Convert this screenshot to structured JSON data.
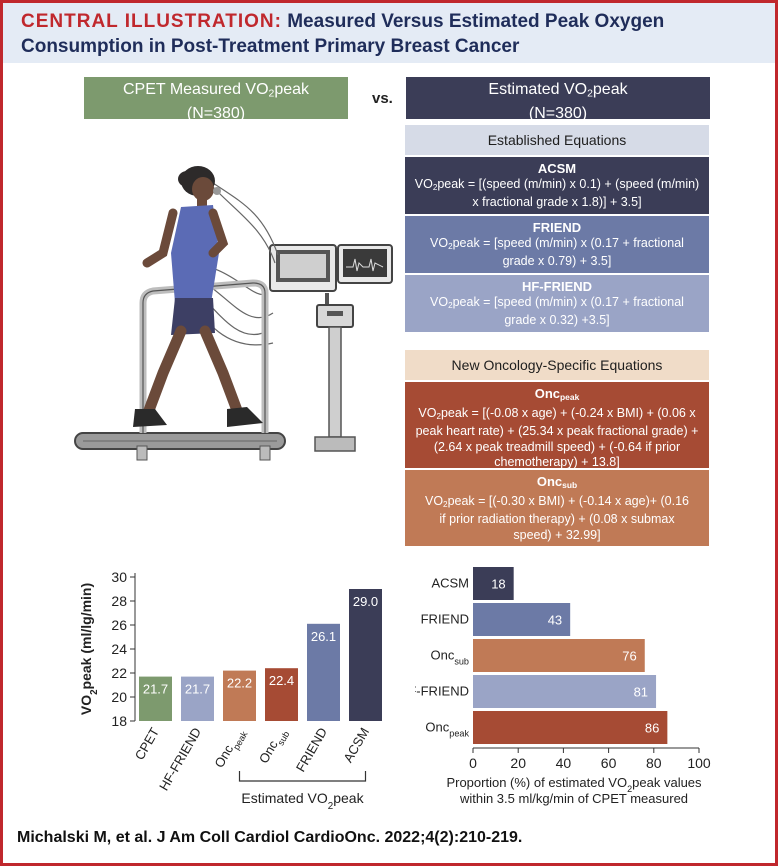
{
  "header": {
    "kicker": "CENTRAL ILLUSTRATION:",
    "title_line1": "Measured Versus Estimated Peak Oxygen",
    "title_line2": "Consumption in Post-Treatment Primary Breast Cancer"
  },
  "comparison": {
    "measured": {
      "label_pre": "CPET Measured VO",
      "label_sub": "2",
      "label_post": "peak",
      "n": "(N=380)"
    },
    "vs": "vs.",
    "estimated": {
      "label_pre": "Estimated VO",
      "label_sub": "2",
      "label_post": "peak",
      "n": "(N=380)"
    }
  },
  "established": {
    "heading": "Established Equations",
    "equations": [
      {
        "name": "ACSM",
        "l1_pre": "VO",
        "l1_sub": "2",
        "l1_post": "peak = [(speed (m/min) x 0.1) + (speed (m/min)",
        "l2": "x fractional grade x 1.8)] + 3.5]"
      },
      {
        "name": "FRIEND",
        "l1_pre": "VO",
        "l1_sub": "2",
        "l1_post": "peak = [speed (m/min) x (0.17 + fractional",
        "l2": "grade x 0.79) + 3.5]"
      },
      {
        "name": "HF-FRIEND",
        "l1_pre": "VO",
        "l1_sub": "2",
        "l1_post": "peak = [speed (m/min) x (0.17 + fractional",
        "l2": "grade x 0.32) +3.5]"
      }
    ]
  },
  "oncology": {
    "heading": "New Oncology-Specific Equations",
    "onc_peak": {
      "name_pre": "Onc",
      "name_sub": "peak",
      "l1_pre": "VO",
      "l1_sub": "2",
      "l1_post": "peak = [(-0.08 x age) + (-0.24 x BMI) + (0.06 x",
      "l2": "peak heart rate) + (25.34 x peak fractional grade) +",
      "l3": "(2.64 x peak treadmill speed) + (-0.64 if prior",
      "l4": "chemotherapy) + 13.8]"
    },
    "onc_sub": {
      "name_pre": "Onc",
      "name_sub": "sub",
      "l1_pre": "VO",
      "l1_sub": "2",
      "l1_post": "peak = [(-0.30 x BMI) + (-0.14 x age)+ (0.16",
      "l2": "if prior radiation therapy) + (0.08 x submax",
      "l3": "speed) + 32.99]"
    }
  },
  "chart_data": [
    {
      "type": "bar",
      "categories": [
        {
          "pre": "CPET",
          "sub": ""
        },
        {
          "pre": "HF-FRIEND",
          "sub": ""
        },
        {
          "pre": "Onc",
          "sub": "peak"
        },
        {
          "pre": "Onc",
          "sub": "sub"
        },
        {
          "pre": "FRIEND",
          "sub": ""
        },
        {
          "pre": "ACSM",
          "sub": ""
        }
      ],
      "values": [
        21.7,
        21.7,
        22.2,
        22.4,
        26.1,
        29.0
      ],
      "value_labels": [
        "21.7",
        "21.7",
        "22.2",
        "22.4",
        "26.1",
        "29.0"
      ],
      "colors": [
        "#7d9a6e",
        "#9aa4c6",
        "#c07a56",
        "#a64b34",
        "#6c7aa6",
        "#3b3d57"
      ],
      "ylabel_pre": "VO",
      "ylabel_sub": "2",
      "ylabel_post": "peak (ml/lg/min)",
      "ylim": [
        18,
        30
      ],
      "yticks": [
        18,
        20,
        22,
        24,
        26,
        28,
        30
      ],
      "group_label_pre": "Estimated VO",
      "group_label_sub": "2",
      "group_label_post": "peak"
    },
    {
      "type": "bar",
      "orientation": "horizontal",
      "categories": [
        {
          "pre": "ACSM",
          "sub": ""
        },
        {
          "pre": "FRIEND",
          "sub": ""
        },
        {
          "pre": "Onc",
          "sub": "sub"
        },
        {
          "pre": "HF-FRIEND",
          "sub": ""
        },
        {
          "pre": "Onc",
          "sub": "peak"
        }
      ],
      "values": [
        18,
        43,
        76,
        81,
        86
      ],
      "value_labels": [
        "18",
        "43",
        "76",
        "81",
        "86"
      ],
      "colors": [
        "#3b3d57",
        "#6c7aa6",
        "#c07a56",
        "#9aa4c6",
        "#a64b34"
      ],
      "xlim": [
        0,
        100
      ],
      "xticks": [
        0,
        20,
        40,
        60,
        80,
        100
      ],
      "xlabel_l1_pre": "Proportion (%) of estimated VO",
      "xlabel_l1_sub": "2",
      "xlabel_l1_post": "peak values",
      "xlabel_l2": "within 3.5 ml/kg/min of CPET measured"
    }
  ],
  "colors": {
    "border_red": "#c0282d",
    "header_bg": "#e4ebf5",
    "title_navy": "#1f2d5a",
    "measured_green": "#7d9a6e",
    "estimated_dark": "#3b3d57",
    "established_header": "#d6dbe7",
    "acsm": "#3b3d57",
    "friend": "#6c7aa6",
    "hf_friend": "#9aa4c6",
    "oncology_header": "#f0dcc8",
    "onc_peak": "#a64b34",
    "onc_sub": "#c07a56"
  },
  "citation": "Michalski M, et al. J Am Coll Cardiol CardioOnc. 2022;4(2):210-219."
}
